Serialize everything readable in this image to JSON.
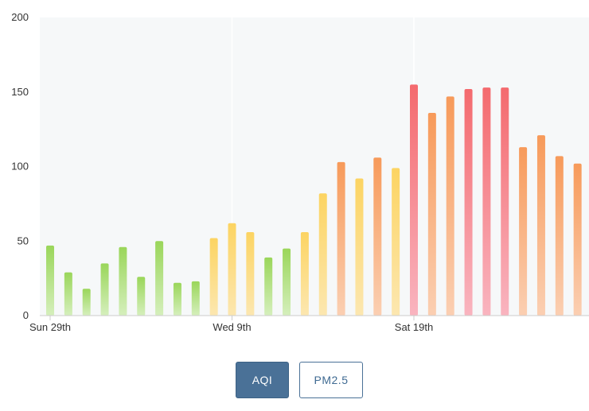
{
  "chart_data": {
    "type": "bar",
    "title": "",
    "xlabel": "",
    "ylabel": "",
    "ylim": [
      0,
      200
    ],
    "y_ticks": [
      "0",
      "50",
      "100",
      "150",
      "200"
    ],
    "x_tick_labels": [
      {
        "index": 0,
        "label": "Sun 29th"
      },
      {
        "index": 10,
        "label": "Wed 9th"
      },
      {
        "index": 20,
        "label": "Sat 19th"
      }
    ],
    "values": [
      47,
      29,
      18,
      35,
      46,
      26,
      50,
      22,
      23,
      52,
      62,
      56,
      39,
      45,
      56,
      82,
      103,
      92,
      106,
      99,
      155,
      136,
      147,
      152,
      153,
      153,
      113,
      121,
      107,
      102
    ],
    "colors": {
      "good_top": "#9ad65a",
      "good_bottom": "#d5efbc",
      "moderate_top": "#fcd462",
      "moderate_bottom": "#fce7b0",
      "sensitive_top": "#f79a5a",
      "sensitive_bottom": "#fbcfb2",
      "unhealthy_top": "#f46a6e",
      "unhealthy_bottom": "#f9b4bf",
      "plot_background": "#f6f8f9",
      "gridline": "#ffffff"
    },
    "grid": true
  },
  "controls": {
    "aqi_label": "AQI",
    "pm25_label": "PM2.5"
  }
}
